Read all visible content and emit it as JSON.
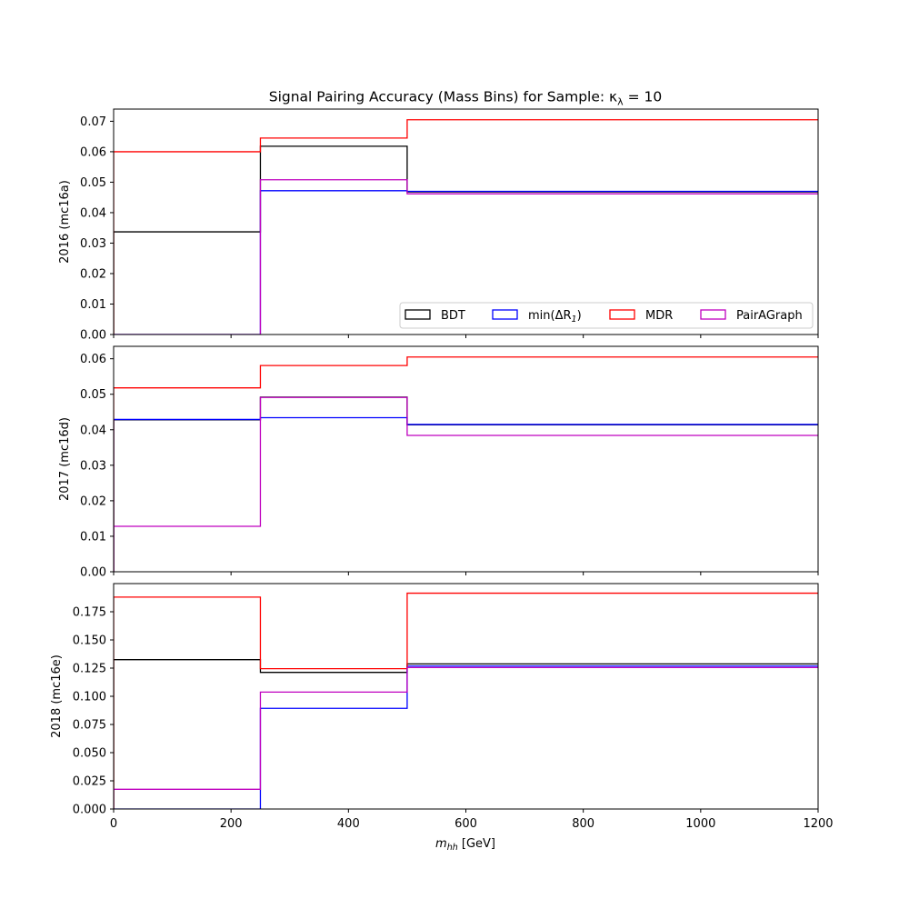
{
  "chart_data": {
    "type": "line",
    "title": "Signal Pairing Accuracy (Mass Bins) for Sample: κ",
    "title_subscript": "λ",
    "title_suffix": " = 10",
    "xlabel": "m",
    "xlabel_subscript": "hh",
    "xlabel_suffix": " [GeV]",
    "xlim": [
      0,
      1200
    ],
    "xticks": [
      "0",
      "200",
      "400",
      "600",
      "800",
      "1000",
      "1200"
    ],
    "bin_edges": [
      0,
      250,
      500,
      1200
    ],
    "legend": {
      "placement": "lower-right",
      "entries": [
        {
          "text": "BDT",
          "color": "#000000"
        },
        {
          "text": "min(ΔR",
          "sub": "1",
          "suffix": ")",
          "color": "#0000ff"
        },
        {
          "text": "MDR",
          "color": "#ff0000"
        },
        {
          "text": "PairAGraph",
          "color": "#bf00bf"
        }
      ]
    },
    "panels": [
      {
        "ylabel": "2016 (mc16a)",
        "ylim": [
          0,
          0.074
        ],
        "yticks": [
          0,
          0.01,
          0.02,
          0.03,
          0.04,
          0.05,
          0.06,
          0.07
        ],
        "ytick_labels": [
          "0.00",
          "0.01",
          "0.02",
          "0.03",
          "0.04",
          "0.05",
          "0.06",
          "0.07"
        ],
        "series": [
          {
            "name": "BDT",
            "color": "#000000",
            "values": [
              0.0337,
              0.0618,
              0.0468
            ]
          },
          {
            "name": "min(ΔR1)",
            "color": "#0000ff",
            "values": [
              0.0,
              0.0472,
              0.047
            ]
          },
          {
            "name": "MDR",
            "color": "#ff0000",
            "values": [
              0.06,
              0.0645,
              0.0705
            ]
          },
          {
            "name": "PairAGraph",
            "color": "#bf00bf",
            "values": [
              0.0,
              0.0508,
              0.0462
            ]
          }
        ]
      },
      {
        "ylabel": "2017 (mc16d)",
        "ylim": [
          0,
          0.0635
        ],
        "yticks": [
          0,
          0.01,
          0.02,
          0.03,
          0.04,
          0.05,
          0.06
        ],
        "ytick_labels": [
          "0.00",
          "0.01",
          "0.02",
          "0.03",
          "0.04",
          "0.05",
          "0.06"
        ],
        "series": [
          {
            "name": "BDT",
            "color": "#000000",
            "values": [
              0.0428,
              0.0492,
              0.0414
            ]
          },
          {
            "name": "min(ΔR1)",
            "color": "#0000ff",
            "values": [
              0.0429,
              0.0434,
              0.0415
            ]
          },
          {
            "name": "MDR",
            "color": "#ff0000",
            "values": [
              0.0518,
              0.0581,
              0.0605
            ]
          },
          {
            "name": "PairAGraph",
            "color": "#bf00bf",
            "values": [
              0.0128,
              0.0491,
              0.0384
            ]
          }
        ]
      },
      {
        "ylabel": "2018 (mc16e)",
        "ylim": [
          0,
          0.2
        ],
        "yticks": [
          0,
          0.025,
          0.05,
          0.075,
          0.1,
          0.125,
          0.15,
          0.175
        ],
        "ytick_labels": [
          "0.000",
          "0.025",
          "0.050",
          "0.075",
          "0.100",
          "0.125",
          "0.150",
          "0.175"
        ],
        "series": [
          {
            "name": "BDT",
            "color": "#000000",
            "values": [
              0.1325,
              0.1212,
              0.1287
            ]
          },
          {
            "name": "min(ΔR1)",
            "color": "#0000ff",
            "values": [
              0.0,
              0.0893,
              0.1268
            ]
          },
          {
            "name": "MDR",
            "color": "#ff0000",
            "values": [
              0.188,
              0.1245,
              0.1915
            ]
          },
          {
            "name": "PairAGraph",
            "color": "#bf00bf",
            "values": [
              0.0175,
              0.1037,
              0.1255
            ]
          }
        ]
      }
    ]
  }
}
